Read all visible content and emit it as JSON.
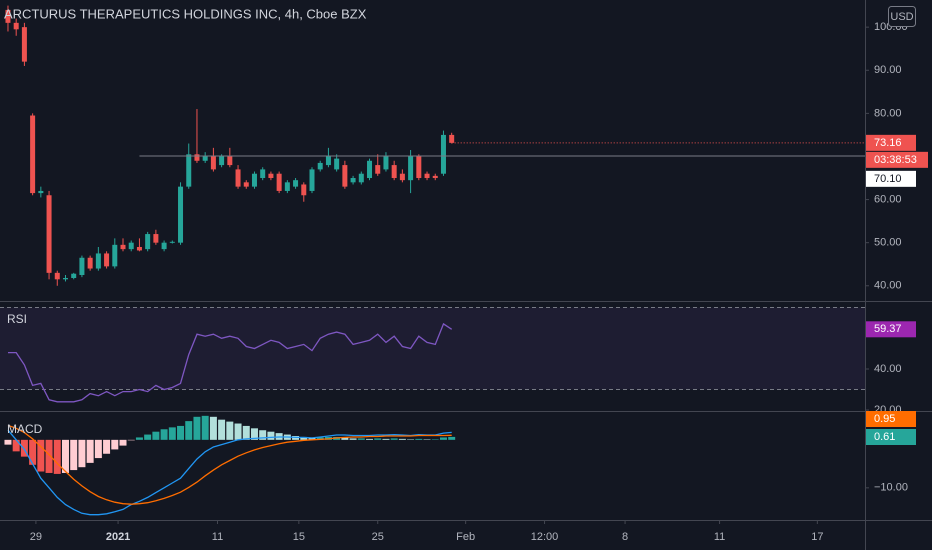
{
  "chart_data": [
    {
      "type": "candlestick",
      "title": "ARCTURUS THERAPEUTICS HOLDINGS INC, 4h, Cboe BZX",
      "currency": "USD",
      "up_color": "#26a69a",
      "down_color": "#ef5350",
      "open": [
        104,
        101,
        100,
        79.5,
        61.5,
        61,
        43,
        41.5,
        41.8,
        42.5,
        46.5,
        44,
        47.5,
        44.5,
        49.5,
        48.5,
        49,
        48.5,
        52,
        48.5,
        50,
        50,
        63,
        70.5,
        69,
        70,
        68,
        70,
        67,
        64,
        63,
        65,
        66,
        66,
        62,
        63,
        63.5,
        62,
        67,
        68,
        67,
        68,
        64,
        64,
        65,
        68,
        67,
        68,
        66,
        64.5,
        70,
        66,
        65.5,
        66,
        75
      ],
      "high": [
        105,
        102,
        101,
        80,
        63,
        62,
        43.5,
        42.5,
        43,
        47,
        47,
        49,
        48,
        51,
        51,
        50.5,
        51,
        52.5,
        53,
        50.5,
        50.5,
        64,
        73,
        81,
        71,
        72,
        70.5,
        72,
        68,
        64.5,
        66.5,
        67.5,
        66.5,
        66.5,
        64.5,
        65,
        64,
        67.5,
        69,
        72,
        70.5,
        69,
        65.5,
        66.5,
        69.5,
        70.5,
        71,
        69,
        67,
        71.5,
        70.5,
        66.5,
        66,
        76,
        75.5
      ],
      "low": [
        99,
        98,
        91,
        61,
        60.5,
        41.5,
        40,
        41,
        41.5,
        42,
        43.5,
        43.5,
        44,
        44,
        48,
        48,
        48,
        48,
        49.5,
        48,
        49.8,
        49.5,
        62.5,
        68.5,
        68.5,
        66.5,
        67.5,
        67.5,
        62.5,
        62.5,
        62.5,
        64.5,
        64.5,
        61.5,
        61.5,
        62.5,
        59.5,
        61.5,
        66.5,
        67.5,
        66.5,
        62.5,
        63.5,
        63.5,
        64.5,
        65.5,
        66.5,
        64.5,
        64,
        61.5,
        64.5,
        64.5,
        64.5,
        65.5,
        73
      ],
      "close": [
        101,
        99.5,
        92,
        61.5,
        62,
        43,
        41.5,
        41.8,
        42.8,
        46.5,
        44,
        47.5,
        44.5,
        49.5,
        48.5,
        50,
        48.2,
        52,
        50,
        50,
        50.2,
        63,
        70.5,
        69,
        70,
        67,
        70,
        68,
        63,
        63,
        66,
        67,
        65,
        62,
        64,
        64.5,
        61,
        67,
        68.5,
        70,
        69.5,
        63,
        65,
        66,
        69,
        66,
        70,
        65,
        64.5,
        70,
        65,
        65,
        65,
        75,
        73.16
      ],
      "ylim": [
        36.7,
        106.3
      ],
      "yticks": [
        {
          "value": 100,
          "label": "100.00"
        },
        {
          "value": 90,
          "label": "90.00"
        },
        {
          "value": 80,
          "label": "80.00"
        },
        {
          "value": 60,
          "label": "60.00"
        },
        {
          "value": 50,
          "label": "50.00"
        },
        {
          "value": 40,
          "label": "40.00"
        }
      ],
      "price_line": {
        "value": 70.1,
        "label": "70.10",
        "x_start": 16
      },
      "countdown": "03:38:53",
      "xlim": [
        -0.97,
        104.3
      ],
      "xticks": [
        {
          "value": 3.4,
          "label": "29"
        },
        {
          "value": 13.4,
          "label": "2021"
        },
        {
          "value": 25.5,
          "label": "11"
        },
        {
          "value": 35.4,
          "label": "15"
        },
        {
          "value": 45,
          "label": "25"
        },
        {
          "value": 55.7,
          "label": "Feb"
        },
        {
          "value": 65.3,
          "label": "12:00"
        },
        {
          "value": 75.1,
          "label": "8"
        },
        {
          "value": 86.6,
          "label": "11"
        },
        {
          "value": 98.5,
          "label": "17"
        }
      ]
    },
    {
      "type": "line",
      "title": "RSI",
      "color": "#7e57c2",
      "label_color": "#9c27b0",
      "band_color": "#7e57c2",
      "values": [
        48,
        48,
        42,
        32,
        33,
        25,
        24,
        24,
        24,
        25,
        28,
        27,
        29,
        27,
        29,
        29,
        30,
        29,
        32,
        30,
        31,
        33,
        47,
        57,
        56,
        57,
        55,
        56,
        55,
        51,
        50,
        52,
        54,
        53,
        50,
        51,
        52,
        49,
        55,
        57,
        58,
        57,
        52,
        53,
        54,
        57,
        53,
        56,
        51,
        50,
        56,
        53,
        52,
        62,
        59.37
      ],
      "bands": [
        70,
        30
      ],
      "ylim": [
        20,
        72.2
      ],
      "yticks": [
        {
          "value": 40,
          "label": "40.00"
        },
        {
          "value": 20,
          "label": "20.00"
        }
      ]
    },
    {
      "type": "macd",
      "title": "MACD",
      "macd_color": "#2196f3",
      "signal_color": "#ff6d00",
      "hist_colors": [
        "#26a69a",
        "#b2dfdb",
        "#ffcdd2",
        "#ef5350"
      ],
      "macd": [
        2,
        0,
        -2,
        -5,
        -8,
        -10,
        -12,
        -13.5,
        -14.5,
        -15.3,
        -15.6,
        -15.6,
        -15.4,
        -15,
        -14.5,
        -13.5,
        -12.8,
        -12,
        -11,
        -10,
        -9,
        -8,
        -6,
        -4,
        -2.5,
        -1.5,
        -1,
        -0.5,
        0,
        0.2,
        0.3,
        0.4,
        0.5,
        0.6,
        0.6,
        0.5,
        0.5,
        0.4,
        0.6,
        0.8,
        1,
        1,
        0.9,
        0.9,
        0.9,
        1,
        1,
        1.1,
        1,
        0.9,
        1.1,
        1,
        1,
        1.4,
        1.56
      ],
      "signal": [
        3,
        2.4,
        1.5,
        0.2,
        -1.4,
        -3.1,
        -4.9,
        -6.6,
        -8.2,
        -9.6,
        -10.8,
        -11.8,
        -12.5,
        -13,
        -13.3,
        -13.4,
        -13.3,
        -13.1,
        -12.7,
        -12.2,
        -11.6,
        -10.9,
        -9.9,
        -8.8,
        -7.5,
        -6.3,
        -5.2,
        -4.3,
        -3.4,
        -2.7,
        -2.1,
        -1.6,
        -1.2,
        -0.8,
        -0.5,
        -0.3,
        -0.1,
        0,
        0.1,
        0.2,
        0.4,
        0.5,
        0.6,
        0.6,
        0.7,
        0.7,
        0.8,
        0.8,
        0.8,
        0.8,
        0.9,
        0.9,
        0.9,
        0.9,
        0.95
      ],
      "histogram": [
        -1,
        -2.4,
        -3.5,
        -5.2,
        -6.6,
        -6.9,
        -7.1,
        -6.9,
        -6.3,
        -5.7,
        -4.8,
        -3.8,
        -2.9,
        -2,
        -1.2,
        -0.1,
        0.5,
        1.1,
        1.7,
        2.2,
        2.6,
        2.9,
        3.9,
        4.8,
        5,
        4.8,
        4.2,
        3.8,
        3.4,
        2.9,
        2.4,
        2,
        1.7,
        1.4,
        1.1,
        0.8,
        0.6,
        0.4,
        0.5,
        0.6,
        0.6,
        0.5,
        0.3,
        0.3,
        0.2,
        0.3,
        0.2,
        0.3,
        0.2,
        0.1,
        0.2,
        0.1,
        0.1,
        0.5,
        0.61
      ],
      "ylim": [
        -16.7,
        5.8
      ],
      "yticks": [
        {
          "value": -10,
          "label": "−10.00"
        }
      ]
    }
  ]
}
